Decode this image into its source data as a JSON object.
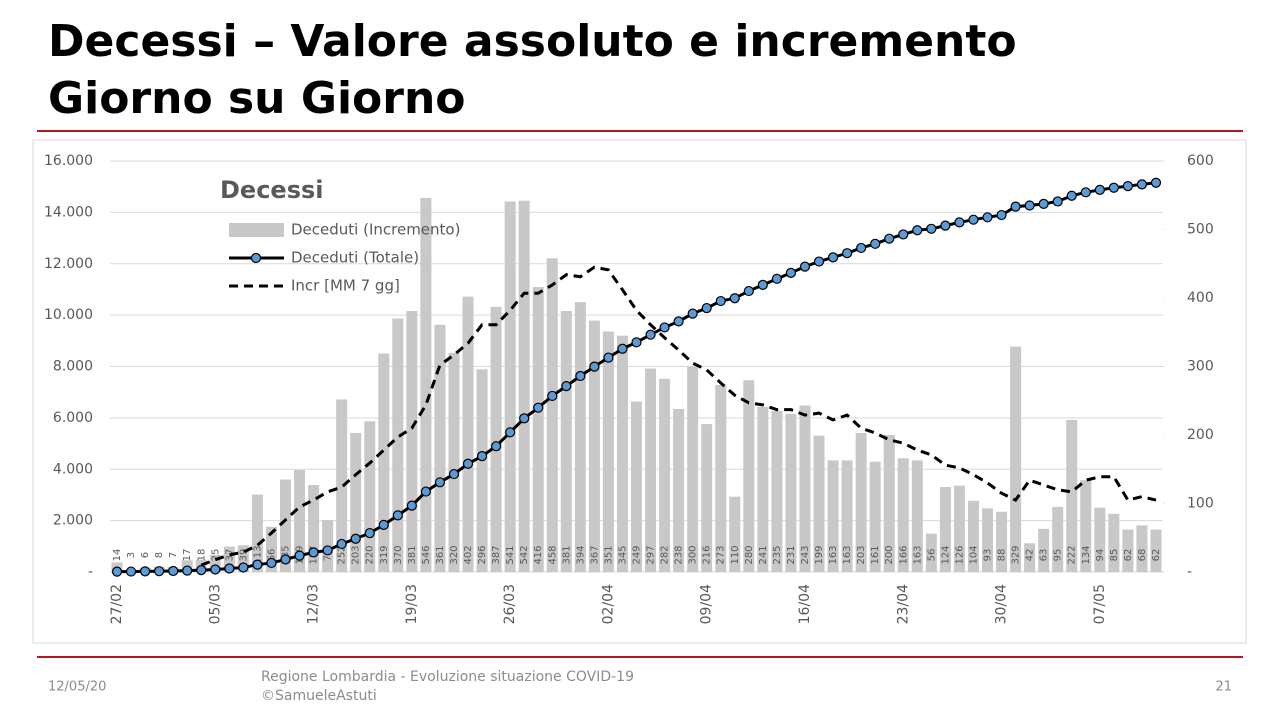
{
  "header": {
    "title_line1": "Decessi – Valore assoluto e incremento",
    "title_line2": "Giorno su Giorno"
  },
  "footer": {
    "date": "12/05/20",
    "source_line1": "Regione Lombardia - Evoluzione situazione COVID-19",
    "source_line2": "©SamueleAstuti",
    "page": "21"
  },
  "chart_data": {
    "type": "combo",
    "title": "Decessi",
    "categories": [
      "27/02",
      null,
      null,
      null,
      null,
      null,
      null,
      "05/03",
      null,
      null,
      null,
      null,
      null,
      null,
      "12/03",
      null,
      null,
      null,
      null,
      null,
      null,
      "19/03",
      null,
      null,
      null,
      null,
      null,
      null,
      "26/03",
      null,
      null,
      null,
      null,
      null,
      null,
      "02/04",
      null,
      null,
      null,
      null,
      null,
      null,
      "09/04",
      null,
      null,
      null,
      null,
      null,
      null,
      "16/04",
      null,
      null,
      null,
      null,
      null,
      null,
      "23/04",
      null,
      null,
      null,
      null,
      null,
      null,
      "30/04",
      null,
      null,
      null,
      null,
      null,
      null,
      "07/05",
      null,
      null,
      null,
      null
    ],
    "series": [
      {
        "name": "Deceduti (Incremento)",
        "type": "bar",
        "axis": "y2",
        "color": "#c9c7c7",
        "values": [
          14,
          3,
          6,
          8,
          7,
          17,
          18,
          25,
          37,
          39,
          113,
          66,
          135,
          149,
          127,
          76,
          252,
          203,
          220,
          319,
          370,
          381,
          546,
          361,
          320,
          402,
          296,
          387,
          541,
          542,
          416,
          458,
          381,
          394,
          367,
          351,
          345,
          249,
          297,
          282,
          238,
          300,
          216,
          273,
          110,
          280,
          241,
          235,
          231,
          243,
          199,
          163,
          163,
          203,
          161,
          200,
          166,
          163,
          56,
          124,
          126,
          104,
          93,
          88,
          329,
          42,
          63,
          95,
          222,
          134,
          94,
          85,
          62,
          68,
          62
        ]
      },
      {
        "name": "Deceduti (Totale)",
        "type": "line",
        "axis": "y",
        "color": "#000000",
        "marker_color": "#5b9bd5",
        "values": [
          14,
          17,
          23,
          31,
          38,
          55,
          73,
          98,
          135,
          174,
          287,
          353,
          488,
          637,
          764,
          840,
          1092,
          1295,
          1515,
          1834,
          2204,
          2585,
          3131,
          3492,
          3812,
          4214,
          4510,
          4897,
          5438,
          5980,
          6396,
          6854,
          7235,
          7629,
          7996,
          8347,
          8692,
          8941,
          9238,
          9520,
          9758,
          10058,
          10274,
          10547,
          10657,
          10937,
          11178,
          11413,
          11644,
          11887,
          12086,
          12249,
          12412,
          12615,
          12776,
          12976,
          13142,
          13305,
          13361,
          13485,
          13611,
          13715,
          13808,
          13896,
          14225,
          14267,
          14330,
          14425,
          14647,
          14781,
          14875,
          14960,
          15022,
          15090,
          15152
        ]
      },
      {
        "name": "Incr [MM 7 gg]",
        "type": "line",
        "axis": "y2",
        "dashed": true,
        "color": "#000000",
        "values": [
          null,
          null,
          null,
          null,
          null,
          null,
          10,
          18,
          25,
          29,
          39,
          57,
          76,
          95,
          105,
          117,
          124,
          142,
          159,
          178,
          197,
          210,
          244,
          302,
          317,
          334,
          361,
          361,
          382,
          407,
          407,
          419,
          434,
          431,
          445,
          441,
          412,
          382,
          361,
          342,
          324,
          305,
          295,
          276,
          258,
          247,
          244,
          237,
          237,
          229,
          232,
          222,
          229,
          210,
          203,
          193,
          188,
          178,
          171,
          156,
          152,
          142,
          130,
          115,
          105,
          134,
          127,
          120,
          117,
          134,
          139,
          139,
          105,
          110,
          105
        ]
      }
    ],
    "ylim": [
      0,
      16000
    ],
    "yticks": [
      {
        "value": 0,
        "label": "-"
      },
      {
        "value": 2000,
        "label": "2.000"
      },
      {
        "value": 4000,
        "label": "4.000"
      },
      {
        "value": 6000,
        "label": "6.000"
      },
      {
        "value": 8000,
        "label": "8.000"
      },
      {
        "value": 10000,
        "label": "10.000"
      },
      {
        "value": 12000,
        "label": "12.000"
      },
      {
        "value": 14000,
        "label": "14.000"
      },
      {
        "value": 16000,
        "label": "16.000"
      }
    ],
    "y2lim": [
      0,
      600
    ],
    "y2ticks": [
      {
        "value": 0,
        "label": "-"
      },
      100,
      200,
      300,
      400,
      500,
      600
    ],
    "grid": true
  }
}
